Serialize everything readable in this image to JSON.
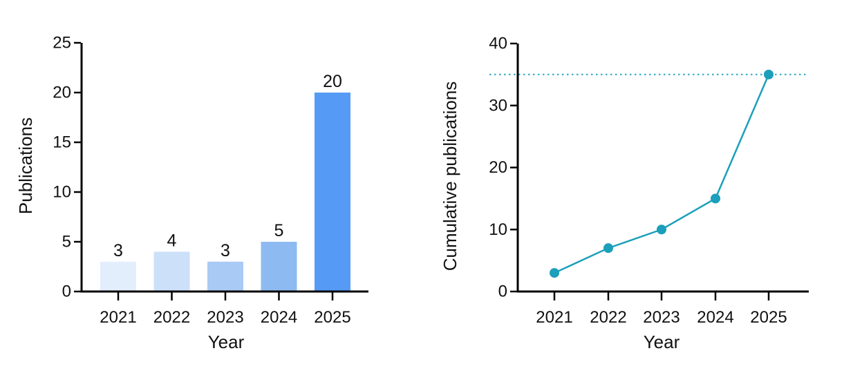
{
  "page": {
    "background_color": "#ffffff"
  },
  "chart_data": [
    {
      "type": "bar",
      "name": "publications-per-year",
      "title": "",
      "categories": [
        "2021",
        "2022",
        "2023",
        "2024",
        "2025"
      ],
      "values": [
        3,
        4,
        3,
        5,
        20
      ],
      "value_labels": [
        "3",
        "4",
        "3",
        "5",
        "20"
      ],
      "xlabel": "Year",
      "ylabel": "Publications",
      "ylim": [
        0,
        25
      ],
      "yticks": [
        0,
        5,
        10,
        15,
        20,
        25
      ],
      "grid": false,
      "legend": "none",
      "bar_colors": [
        "#e3eefc",
        "#cde0f9",
        "#a9caf4",
        "#8dbbf1",
        "#559af4"
      ],
      "axis_color": "#000000",
      "text_color": "#111111"
    },
    {
      "type": "line",
      "name": "cumulative-publications",
      "title": "",
      "categories": [
        "2021",
        "2022",
        "2023",
        "2024",
        "2025"
      ],
      "values": [
        3,
        7,
        10,
        15,
        35
      ],
      "xlabel": "Year",
      "ylabel": "Cumulative publications",
      "ylim": [
        0,
        40
      ],
      "yticks": [
        0,
        10,
        20,
        30,
        40
      ],
      "grid": false,
      "legend": "none",
      "line_color": "#1b9fba",
      "marker_color": "#1b9fba",
      "marker_style": "circle",
      "reference_line": {
        "y": 35,
        "style": "dotted",
        "color": "#3db0c8"
      },
      "axis_color": "#000000",
      "text_color": "#111111"
    }
  ]
}
